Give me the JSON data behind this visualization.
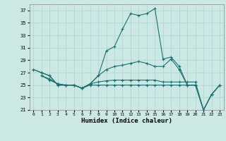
{
  "xlabel": "Humidex (Indice chaleur)",
  "xlim": [
    -0.5,
    23.5
  ],
  "ylim": [
    21,
    38
  ],
  "yticks": [
    21,
    23,
    25,
    27,
    29,
    31,
    33,
    35,
    37
  ],
  "xticks": [
    0,
    1,
    2,
    3,
    4,
    5,
    6,
    7,
    8,
    9,
    10,
    11,
    12,
    13,
    14,
    15,
    16,
    17,
    18,
    19,
    20,
    21,
    22,
    23
  ],
  "bg_color": "#cce8e4",
  "grid_color": "#aad4d0",
  "line_color": "#1a7070",
  "lines": [
    {
      "x": [
        0,
        1,
        2,
        3,
        4,
        5,
        6,
        7,
        8,
        9,
        10,
        11,
        12,
        13,
        14,
        15,
        16,
        17,
        18,
        19,
        20
      ],
      "y": [
        27.5,
        27.0,
        26.5,
        25.0,
        25.0,
        25.0,
        24.5,
        25.2,
        26.5,
        30.5,
        31.2,
        34.0,
        36.5,
        36.2,
        36.5,
        37.3,
        29.2,
        29.5,
        28.0,
        25.0,
        25.0
      ]
    },
    {
      "x": [
        0,
        1,
        2,
        3,
        4,
        5,
        6,
        7,
        8,
        9,
        10,
        11,
        12,
        13,
        14,
        15,
        16,
        17,
        18,
        19,
        20,
        21,
        22,
        23
      ],
      "y": [
        27.5,
        27.0,
        26.5,
        25.0,
        25.0,
        25.0,
        24.5,
        25.2,
        26.5,
        27.5,
        28.0,
        28.2,
        28.5,
        28.8,
        28.5,
        28.0,
        28.0,
        29.2,
        27.5,
        25.0,
        25.0,
        21.0,
        23.5,
        25.0
      ]
    },
    {
      "x": [
        1,
        2,
        3,
        4,
        5,
        6,
        7,
        8,
        9,
        10,
        11,
        12,
        13,
        14,
        15,
        16,
        17,
        18,
        19,
        20,
        21,
        22,
        23
      ],
      "y": [
        26.5,
        26.0,
        25.2,
        25.0,
        25.0,
        24.5,
        25.2,
        25.5,
        25.7,
        25.8,
        25.8,
        25.8,
        25.8,
        25.8,
        25.8,
        25.5,
        25.5,
        25.5,
        25.5,
        25.5,
        21.0,
        23.5,
        25.0
      ]
    },
    {
      "x": [
        1,
        2,
        3,
        4,
        5,
        6,
        7,
        8,
        9,
        10,
        11,
        12,
        13,
        14,
        15,
        16,
        17,
        18,
        19,
        20,
        21,
        22,
        23
      ],
      "y": [
        26.5,
        25.8,
        25.2,
        25.0,
        25.0,
        24.5,
        25.0,
        25.0,
        25.0,
        25.0,
        25.0,
        25.0,
        25.0,
        25.0,
        25.0,
        25.0,
        25.0,
        25.0,
        25.0,
        25.0,
        21.0,
        23.5,
        25.0
      ]
    }
  ]
}
